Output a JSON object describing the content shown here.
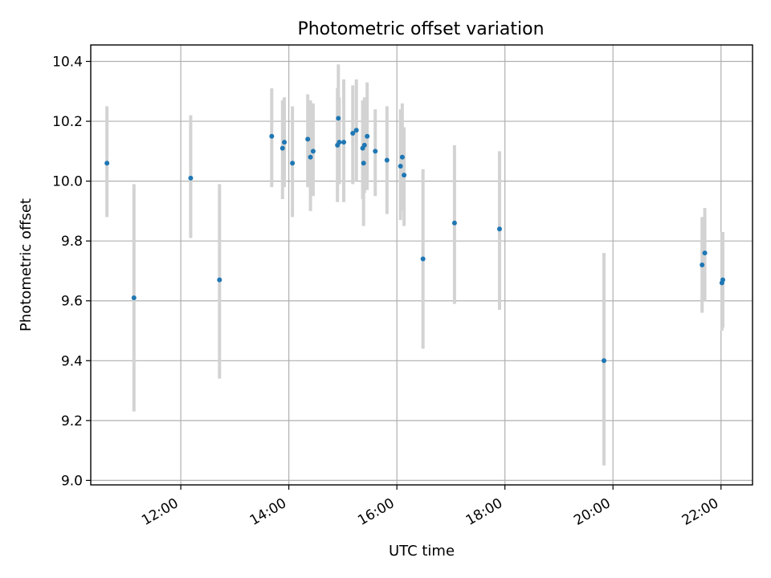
{
  "chart_data": {
    "type": "scatter",
    "title": "Photometric offset variation",
    "xlabel": "UTC time",
    "ylabel": "Photometric offset",
    "x_is_time": true,
    "xlim": [
      "10:20",
      "22:35"
    ],
    "ylim": [
      8.985,
      10.455
    ],
    "xticks": [
      "12:00",
      "14:00",
      "16:00",
      "18:00",
      "20:00",
      "22:00"
    ],
    "yticks": [
      "9.0",
      "9.2",
      "9.4",
      "9.6",
      "9.8",
      "10.0",
      "10.2",
      "10.4"
    ],
    "grid": true,
    "point_color": "#1f77b4",
    "errorbar_color": "#d3d3d3",
    "points": [
      {
        "x": "10:38",
        "y": 10.06,
        "lo": 9.88,
        "hi": 10.25
      },
      {
        "x": "11:08",
        "y": 9.61,
        "lo": 9.23,
        "hi": 9.99
      },
      {
        "x": "12:11",
        "y": 10.01,
        "lo": 9.81,
        "hi": 10.22
      },
      {
        "x": "12:43",
        "y": 9.67,
        "lo": 9.34,
        "hi": 9.99
      },
      {
        "x": "13:41",
        "y": 10.15,
        "lo": 9.98,
        "hi": 10.31
      },
      {
        "x": "13:53",
        "y": 10.11,
        "lo": 9.94,
        "hi": 10.27
      },
      {
        "x": "13:55",
        "y": 10.13,
        "lo": 9.98,
        "hi": 10.28
      },
      {
        "x": "14:04",
        "y": 10.06,
        "lo": 9.88,
        "hi": 10.25
      },
      {
        "x": "14:21",
        "y": 10.14,
        "lo": 9.98,
        "hi": 10.29
      },
      {
        "x": "14:24",
        "y": 10.08,
        "lo": 9.9,
        "hi": 10.27
      },
      {
        "x": "14:27",
        "y": 10.1,
        "lo": 9.95,
        "hi": 10.26
      },
      {
        "x": "14:54",
        "y": 10.12,
        "lo": 9.93,
        "hi": 10.31
      },
      {
        "x": "14:55",
        "y": 10.21,
        "lo": 10.03,
        "hi": 10.39
      },
      {
        "x": "14:56",
        "y": 10.13,
        "lo": 9.99,
        "hi": 10.28
      },
      {
        "x": "15:01",
        "y": 10.13,
        "lo": 9.93,
        "hi": 10.34
      },
      {
        "x": "15:11",
        "y": 10.16,
        "lo": 9.99,
        "hi": 10.32
      },
      {
        "x": "15:15",
        "y": 10.17,
        "lo": 10.0,
        "hi": 10.34
      },
      {
        "x": "15:22",
        "y": 10.11,
        "lo": 9.94,
        "hi": 10.27
      },
      {
        "x": "15:23",
        "y": 10.06,
        "lo": 9.85,
        "hi": 10.26
      },
      {
        "x": "15:24",
        "y": 10.12,
        "lo": 9.96,
        "hi": 10.28
      },
      {
        "x": "15:27",
        "y": 10.15,
        "lo": 9.97,
        "hi": 10.33
      },
      {
        "x": "15:36",
        "y": 10.1,
        "lo": 9.95,
        "hi": 10.24
      },
      {
        "x": "15:49",
        "y": 10.07,
        "lo": 9.89,
        "hi": 10.25
      },
      {
        "x": "16:04",
        "y": 10.05,
        "lo": 9.87,
        "hi": 10.24
      },
      {
        "x": "16:06",
        "y": 10.08,
        "lo": 9.9,
        "hi": 10.26
      },
      {
        "x": "16:08",
        "y": 10.02,
        "lo": 9.85,
        "hi": 10.18
      },
      {
        "x": "16:29",
        "y": 9.74,
        "lo": 9.44,
        "hi": 10.04
      },
      {
        "x": "17:04",
        "y": 9.86,
        "lo": 9.59,
        "hi": 10.12
      },
      {
        "x": "17:54",
        "y": 9.84,
        "lo": 9.57,
        "hi": 10.1
      },
      {
        "x": "19:50",
        "y": 9.4,
        "lo": 9.05,
        "hi": 9.76
      },
      {
        "x": "21:39",
        "y": 9.72,
        "lo": 9.56,
        "hi": 9.88
      },
      {
        "x": "21:42",
        "y": 9.76,
        "lo": 9.6,
        "hi": 9.91
      },
      {
        "x": "22:01",
        "y": 9.66,
        "lo": 9.5,
        "hi": 9.83
      },
      {
        "x": "22:02",
        "y": 9.67,
        "lo": 9.51,
        "hi": 9.83
      }
    ]
  }
}
